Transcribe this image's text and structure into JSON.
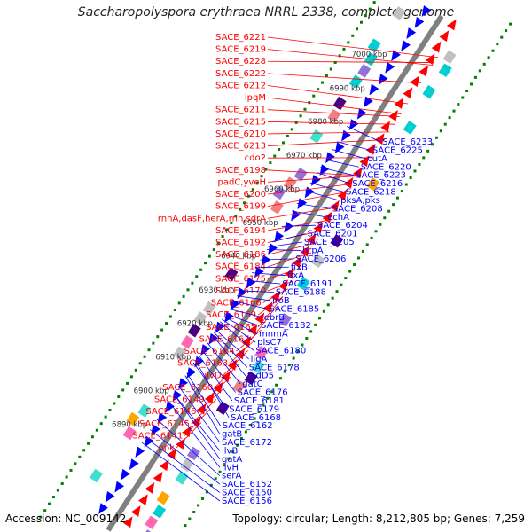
{
  "title": "Saccharopolyspora erythraea NRRL 2338, complete genome",
  "footer": {
    "accession": "Accession: NC_009142",
    "summary": "Topology: circular; Length: 8,212,805 bp; Genes: 7,259"
  },
  "kbp_ticks": [
    {
      "label": "6890 kbp",
      "t": 0.855
    },
    {
      "label": "6900 kbp",
      "t": 0.79
    },
    {
      "label": "6910 kbp",
      "t": 0.724
    },
    {
      "label": "6920 kbp",
      "t": 0.659
    },
    {
      "label": "6930 kbp",
      "t": 0.594
    },
    {
      "label": "6940 kbp",
      "t": 0.528
    },
    {
      "label": "6950 kbp",
      "t": 0.463
    },
    {
      "label": "6960 kbp",
      "t": 0.398
    },
    {
      "label": "6970 kbp",
      "t": 0.332
    },
    {
      "label": "6980 kbp",
      "t": 0.267
    },
    {
      "label": "6990 kbp",
      "t": 0.202
    },
    {
      "label": "7000 kbp",
      "t": 0.136
    }
  ],
  "left_labels": [
    {
      "text": "SACE_6221",
      "t": 0.06
    },
    {
      "text": "SACE_6219",
      "t": 0.075
    },
    {
      "text": "SACE_6228",
      "t": 0.07
    },
    {
      "text": "SACE_6222",
      "t": 0.11
    },
    {
      "text": "SACE_6212",
      "t": 0.15
    },
    {
      "text": "lpqM",
      "t": 0.17
    },
    {
      "text": "SACE_6211",
      "t": 0.175
    },
    {
      "text": "SACE_6215",
      "t": 0.19
    },
    {
      "text": "SACE_6210",
      "t": 0.205
    },
    {
      "text": "SACE_6213",
      "t": 0.22
    },
    {
      "text": "cdo2",
      "t": 0.255
    },
    {
      "text": "SACE_6198",
      "t": 0.29
    },
    {
      "text": "padC,yveH",
      "t": 0.29
    },
    {
      "text": "SACE_6200",
      "t": 0.305
    },
    {
      "text": "SACE_6199",
      "t": 0.32
    },
    {
      "text": "rnhA,dasF,herA,rnh,sdrA",
      "t": 0.35
    },
    {
      "text": "SACE_6194",
      "t": 0.375
    },
    {
      "text": "SACE_6192",
      "t": 0.395
    },
    {
      "text": "SACE_6186",
      "t": 0.42
    },
    {
      "text": "SACE_6184",
      "t": 0.44
    },
    {
      "text": "SACE_6175",
      "t": 0.47
    },
    {
      "text": "SACE_6170",
      "t": 0.495
    },
    {
      "text": "SACE_6166",
      "t": 0.51
    },
    {
      "text": "SACE_6169",
      "t": 0.525
    },
    {
      "text": "SACE_6165",
      "t": 0.525
    },
    {
      "text": "SACE_6167",
      "t": 0.545
    },
    {
      "text": "SACE_6164",
      "t": 0.59
    },
    {
      "text": "SACE_6163",
      "t": 0.61
    },
    {
      "text": "ilvD",
      "t": 0.63
    },
    {
      "text": "SACE_6160",
      "t": 0.655
    },
    {
      "text": "SACE_6149",
      "t": 0.68
    },
    {
      "text": "SACE_6146",
      "t": 0.705
    },
    {
      "text": "SACE_6145",
      "t": 0.725
    },
    {
      "text": "SACE_6141",
      "t": 0.745
    },
    {
      "text": "ppk",
      "t": 0.77
    }
  ],
  "right_labels": [
    {
      "text": "SACE_6233",
      "t": 0.235
    },
    {
      "text": "SACE_6225",
      "t": 0.265
    },
    {
      "text": "cutA",
      "t": 0.28
    },
    {
      "text": "SACE_6220",
      "t": 0.3
    },
    {
      "text": "SACE_6223",
      "t": 0.315
    },
    {
      "text": "SACE_6216",
      "t": 0.325
    },
    {
      "text": "SACE_6218",
      "t": 0.345
    },
    {
      "text": "pksA,pks",
      "t": 0.36
    },
    {
      "text": "SACE_6208",
      "t": 0.385
    },
    {
      "text": "echA",
      "t": 0.4
    },
    {
      "text": "SACE_6204",
      "t": 0.43
    },
    {
      "text": "SACE_6201",
      "t": 0.46
    },
    {
      "text": "SACE_6205",
      "t": 0.47
    },
    {
      "text": "hrpA",
      "t": 0.475
    },
    {
      "text": "SACE_6206",
      "t": 0.495
    },
    {
      "text": "fixB",
      "t": 0.51
    },
    {
      "text": "fixA",
      "t": 0.52
    },
    {
      "text": "SACE_6191",
      "t": 0.535
    },
    {
      "text": "SACE_6188",
      "t": 0.555
    },
    {
      "text": "iroB",
      "t": 0.565
    },
    {
      "text": "SACE_6185",
      "t": 0.575
    },
    {
      "text": "ebrB",
      "t": 0.59
    },
    {
      "text": "SACE_6182",
      "t": 0.6
    },
    {
      "text": "mnmA",
      "t": 0.605
    },
    {
      "text": "plsC7",
      "t": 0.61
    },
    {
      "text": "SACE_6180",
      "t": 0.615
    },
    {
      "text": "ligA",
      "t": 0.63
    },
    {
      "text": "SACE_6178",
      "t": 0.635
    },
    {
      "text": "fadD5",
      "t": 0.64
    },
    {
      "text": "gatC",
      "t": 0.655
    },
    {
      "text": "SACE_6176",
      "t": 0.67
    },
    {
      "text": "SACE_6181",
      "t": 0.68
    },
    {
      "text": "SACE_6179",
      "t": 0.695
    },
    {
      "text": "SACE_6168",
      "t": 0.69
    },
    {
      "text": "SACE_6162",
      "t": 0.715
    },
    {
      "text": "gatB",
      "t": 0.72
    },
    {
      "text": "SACE_6172",
      "t": 0.74
    },
    {
      "text": "ilvB",
      "t": 0.755
    },
    {
      "text": "gatA",
      "t": 0.755
    },
    {
      "text": "ilvH",
      "t": 0.77
    },
    {
      "text": "serA",
      "t": 0.805
    },
    {
      "text": "SACE_6152",
      "t": 0.825
    },
    {
      "text": "SACE_6150",
      "t": 0.84
    },
    {
      "text": "SACE_6156",
      "t": 0.85
    }
  ],
  "colors": {
    "reverse_strand": "#ff0000",
    "forward_strand": "#0000ff",
    "backbone": "#808080",
    "gc_skew_positive": "#008000",
    "left_label": "#ff0000",
    "right_label": "#0000ff"
  }
}
